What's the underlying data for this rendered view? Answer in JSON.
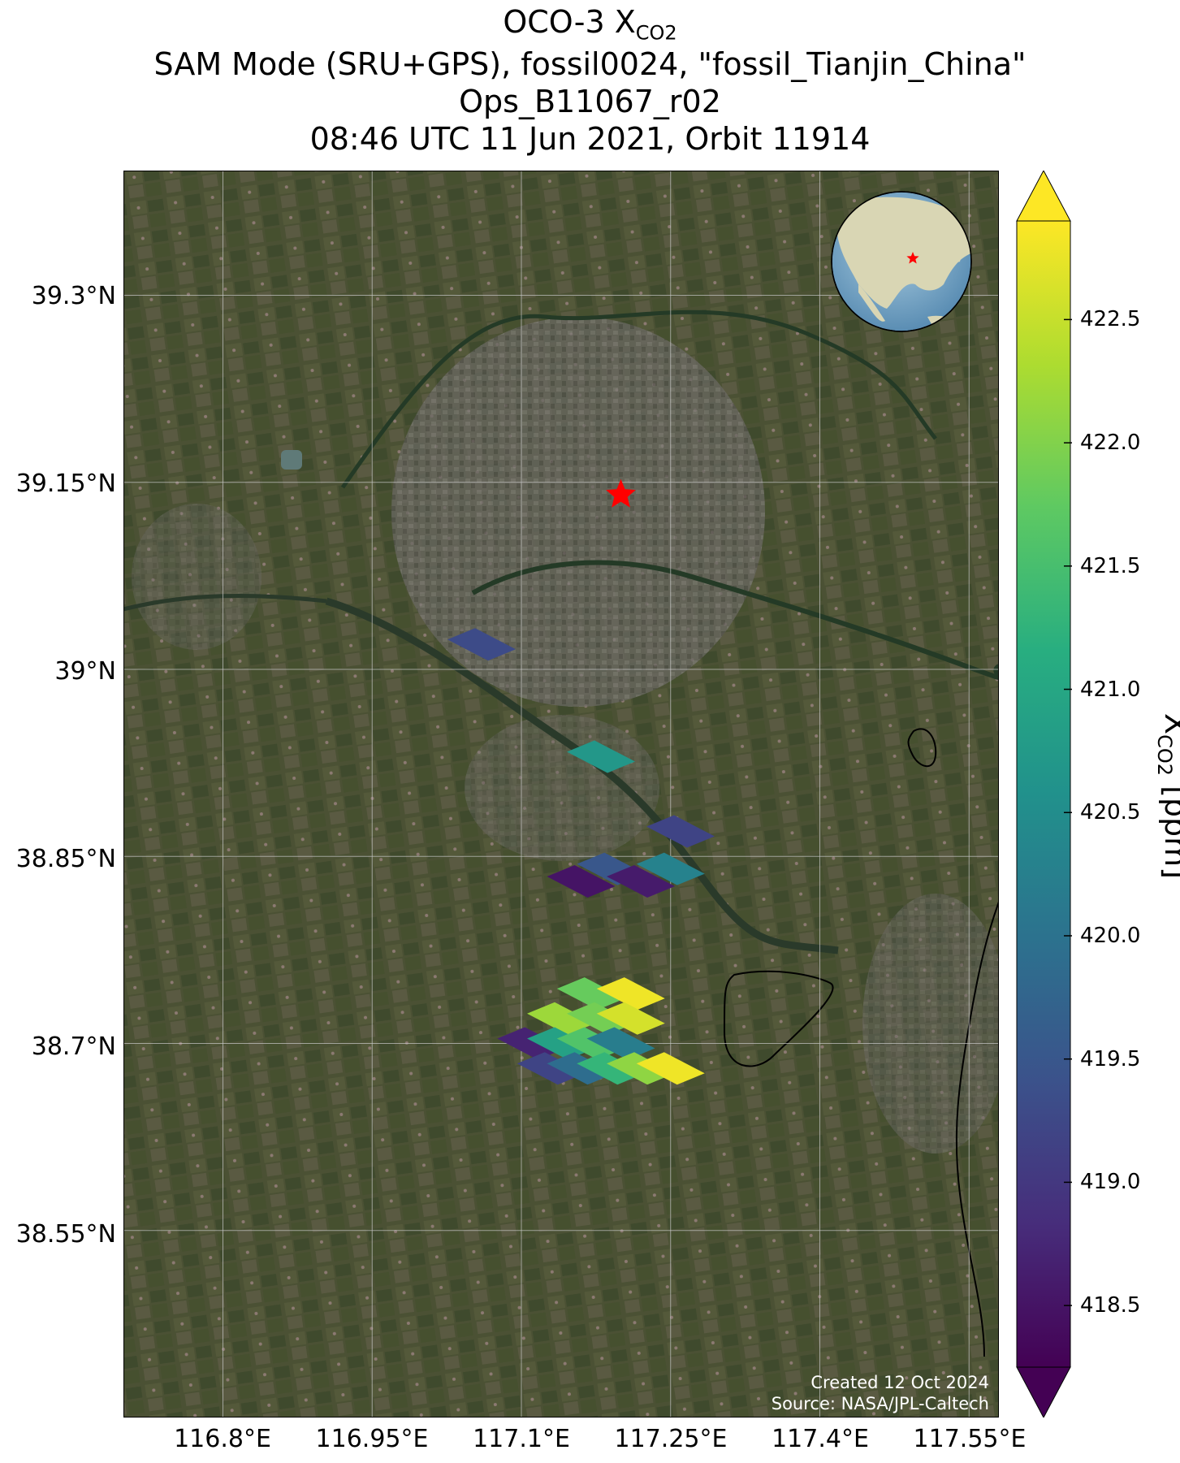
{
  "title": {
    "line1_prefix": "OCO-3 X",
    "line1_sub": "CO2",
    "line2": "SAM Mode (SRU+GPS), fossil0024, \"fossil_Tianjin_China\"",
    "line3": "Ops_B11067_r02",
    "line4": "08:46 UTC 11 Jun 2021, Orbit 11914"
  },
  "map": {
    "lat_ticks": [
      "39.3°N",
      "39.15°N",
      "39°N",
      "38.85°N",
      "38.7°N",
      "38.55°N"
    ],
    "lat_values": [
      39.3,
      39.15,
      39.0,
      38.85,
      38.7,
      38.55
    ],
    "lon_ticks": [
      "116.8°E",
      "116.95°E",
      "117.1°E",
      "117.25°E",
      "117.4°E",
      "117.55°E"
    ],
    "lon_values": [
      116.8,
      116.95,
      117.1,
      117.25,
      117.4,
      117.55
    ],
    "lat_range": [
      38.4,
      39.4
    ],
    "lon_range": [
      116.7,
      117.58
    ],
    "target_marker": {
      "name": "red-star-target",
      "lat": 39.14,
      "lon": 117.2,
      "color": "#ff0000"
    },
    "grid": true,
    "background": "satellite imagery"
  },
  "colorbar": {
    "label_prefix": "X",
    "label_sub": "CO2",
    "label_suffix": " [ppm]",
    "ticks": [
      "418.5",
      "419.0",
      "419.5",
      "420.0",
      "420.5",
      "421.0",
      "421.5",
      "422.0",
      "422.5"
    ],
    "range": [
      418.25,
      422.9
    ],
    "colormap": "viridis"
  },
  "chart_data": {
    "type": "heatmap",
    "xlabel": "",
    "ylabel": "",
    "soundings": [
      {
        "lat": 39.02,
        "lon": 117.06,
        "xco2": 419.3
      },
      {
        "lat": 38.93,
        "lon": 117.18,
        "xco2": 420.7
      },
      {
        "lat": 38.87,
        "lon": 117.26,
        "xco2": 419.2
      },
      {
        "lat": 38.83,
        "lon": 117.16,
        "xco2": 418.5
      },
      {
        "lat": 38.84,
        "lon": 117.19,
        "xco2": 419.5
      },
      {
        "lat": 38.83,
        "lon": 117.22,
        "xco2": 418.6
      },
      {
        "lat": 38.84,
        "lon": 117.25,
        "xco2": 420.3
      },
      {
        "lat": 38.74,
        "lon": 117.17,
        "xco2": 421.8
      },
      {
        "lat": 38.74,
        "lon": 117.21,
        "xco2": 422.8
      },
      {
        "lat": 38.72,
        "lon": 117.14,
        "xco2": 422.2
      },
      {
        "lat": 38.72,
        "lon": 117.18,
        "xco2": 421.9
      },
      {
        "lat": 38.72,
        "lon": 117.21,
        "xco2": 422.6
      },
      {
        "lat": 38.7,
        "lon": 117.11,
        "xco2": 418.7
      },
      {
        "lat": 38.7,
        "lon": 117.14,
        "xco2": 420.9
      },
      {
        "lat": 38.7,
        "lon": 117.17,
        "xco2": 421.6
      },
      {
        "lat": 38.7,
        "lon": 117.2,
        "xco2": 420.2
      },
      {
        "lat": 38.68,
        "lon": 117.13,
        "xco2": 419.2
      },
      {
        "lat": 38.68,
        "lon": 117.16,
        "xco2": 419.9
      },
      {
        "lat": 38.68,
        "lon": 117.19,
        "xco2": 421.3
      },
      {
        "lat": 38.68,
        "lon": 117.22,
        "xco2": 422.1
      },
      {
        "lat": 38.68,
        "lon": 117.25,
        "xco2": 422.8
      }
    ]
  },
  "inset": {
    "name": "globe-locator",
    "marker_color": "#ff0000"
  },
  "credits": {
    "created": "Created 12 Oct 2024",
    "source": "Source: NASA/JPL-Caltech"
  }
}
